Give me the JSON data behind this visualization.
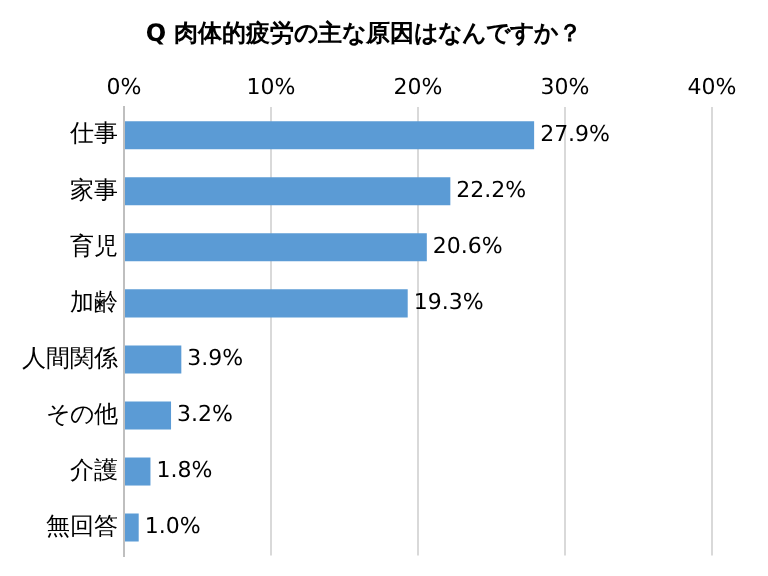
{
  "chart_data": {
    "type": "bar",
    "orientation": "horizontal",
    "title": "Q 肉体的疲労の主な原因はなんですか？",
    "categories": [
      "仕事",
      "家事",
      "育児",
      "加齢",
      "人間関係",
      "その他",
      "介護",
      "無回答"
    ],
    "values": [
      27.9,
      22.2,
      20.6,
      19.3,
      3.9,
      3.2,
      1.8,
      1.0
    ],
    "value_labels": [
      "27.9%",
      "22.2%",
      "20.6%",
      "19.3%",
      "3.9%",
      "3.2%",
      "1.8%",
      "1.0%"
    ],
    "color": "#5b9bd5",
    "xlim": [
      0,
      40
    ],
    "xticks": [
      {
        "value": 0,
        "label": "0%"
      },
      {
        "value": 10,
        "label": "10%"
      },
      {
        "value": 20,
        "label": "20%"
      },
      {
        "value": 30,
        "label": "30%"
      },
      {
        "value": 40,
        "label": "40%"
      }
    ],
    "grid": "x",
    "legend": false
  }
}
